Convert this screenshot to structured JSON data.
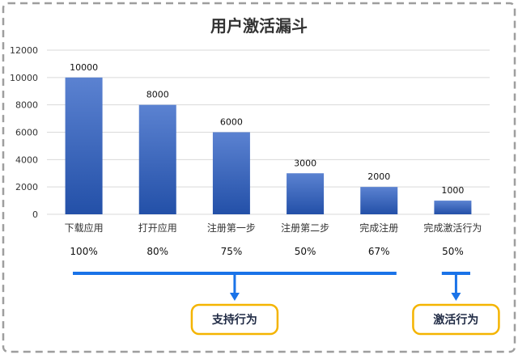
{
  "chart_data": {
    "type": "bar",
    "title": "用户激活漏斗",
    "categories": [
      "下载应用",
      "打开应用",
      "注册第一步",
      "注册第二步",
      "完成注册",
      "完成激活行为"
    ],
    "values": [
      10000,
      8000,
      6000,
      3000,
      2000,
      1000
    ],
    "data_labels": [
      "10000",
      "8000",
      "6000",
      "3000",
      "2000",
      "1000"
    ],
    "conversion_rates": [
      "100%",
      "80%",
      "75%",
      "50%",
      "67%",
      "50%"
    ],
    "ylim": [
      0,
      12000
    ],
    "yticks": [
      "0",
      "2000",
      "4000",
      "6000",
      "8000",
      "10000",
      "12000"
    ],
    "ytick_values": [
      0,
      2000,
      4000,
      6000,
      8000,
      10000,
      12000
    ],
    "grid": true,
    "bar_color_top": "#5b82d1",
    "bar_color_bottom": "#2350a8"
  },
  "groups": [
    {
      "label": "支持行为",
      "first_index": 0,
      "last_index": 4
    },
    {
      "label": "激活行为",
      "first_index": 5,
      "last_index": 5
    }
  ],
  "colors": {
    "bracket": "#1a73e8",
    "box_border": "#f4b400",
    "frame_border": "#9e9e9e",
    "grid": "#d9d9d9"
  }
}
